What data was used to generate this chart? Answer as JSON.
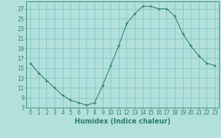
{
  "x": [
    0,
    1,
    2,
    3,
    4,
    5,
    6,
    7,
    8,
    9,
    10,
    11,
    12,
    13,
    14,
    15,
    16,
    17,
    18,
    19,
    20,
    21,
    22,
    23
  ],
  "y": [
    16.0,
    14.0,
    12.5,
    11.0,
    9.5,
    8.5,
    8.0,
    7.5,
    8.0,
    11.5,
    15.5,
    19.5,
    24.0,
    26.0,
    27.5,
    27.5,
    27.0,
    27.0,
    25.5,
    22.0,
    19.5,
    17.5,
    16.0,
    15.5
  ],
  "line_color": "#2e7d6e",
  "marker": "+",
  "bg_color": "#b2e0dc",
  "grid_color": "#7bbfba",
  "xlabel": "Humidex (Indice chaleur)",
  "ylabel": "",
  "xlim": [
    -0.5,
    23.5
  ],
  "ylim": [
    7,
    28.5
  ],
  "yticks": [
    7,
    9,
    11,
    13,
    15,
    17,
    19,
    21,
    23,
    25,
    27
  ],
  "xticks": [
    0,
    1,
    2,
    3,
    4,
    5,
    6,
    7,
    8,
    9,
    10,
    11,
    12,
    13,
    14,
    15,
    16,
    17,
    18,
    19,
    20,
    21,
    22,
    23
  ],
  "xtick_labels": [
    "0",
    "1",
    "2",
    "3",
    "4",
    "5",
    "6",
    "7",
    "8",
    "9",
    "10",
    "11",
    "12",
    "13",
    "14",
    "15",
    "16",
    "17",
    "18",
    "19",
    "20",
    "21",
    "22",
    "23"
  ],
  "tick_color": "#2e7d6e",
  "label_color": "#2e7d6e",
  "label_fontsize": 7,
  "tick_fontsize": 5.5
}
